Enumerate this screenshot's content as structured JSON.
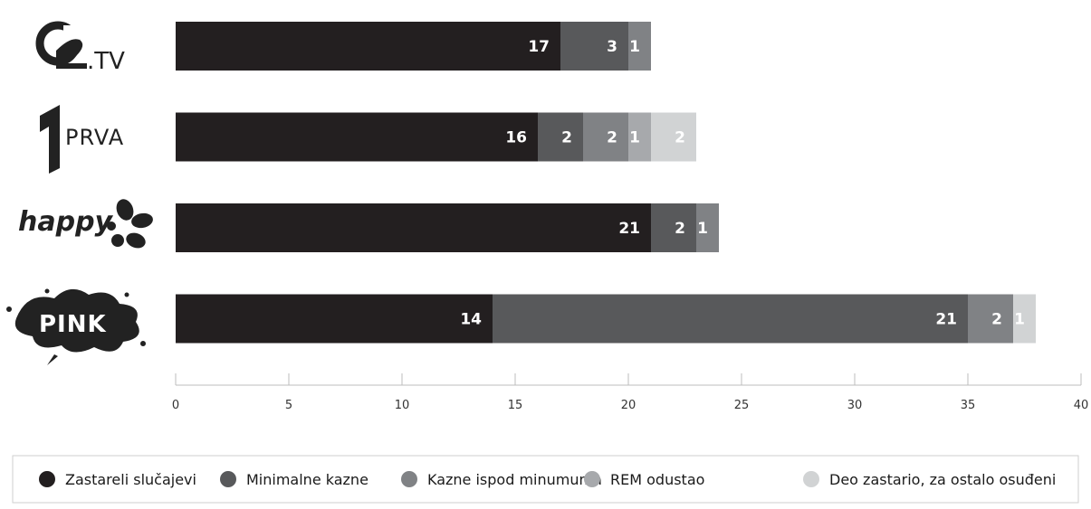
{
  "chart_data": {
    "type": "bar",
    "orientation": "horizontal",
    "stacked": true,
    "categories": [
      "O2.TV",
      "PRVA",
      "happy",
      "PINK"
    ],
    "category_logos": [
      "o2tv-logo",
      "prva-logo",
      "happy-logo",
      "pink-logo"
    ],
    "series": [
      {
        "name": "Zastareli slučajevi",
        "color": "#231f20",
        "values": [
          17,
          16,
          21,
          14
        ]
      },
      {
        "name": "Minimalne kazne",
        "color": "#58595b",
        "values": [
          3,
          2,
          2,
          21
        ]
      },
      {
        "name": "Kazne ispod minumuma",
        "color": "#808285",
        "values": [
          1,
          2,
          1,
          2
        ]
      },
      {
        "name": "REM odustao",
        "color": "#a7a9ac",
        "values": [
          0,
          1,
          0,
          0
        ]
      },
      {
        "name": "Deo zastario, za ostalo osuđeni",
        "color": "#d1d3d4",
        "values": [
          0,
          2,
          0,
          1
        ]
      }
    ],
    "xlim": [
      0,
      40
    ],
    "xticks": [
      0,
      5,
      10,
      15,
      20,
      25,
      30,
      35,
      40
    ],
    "title": "",
    "xlabel": "",
    "ylabel": "",
    "grid": false,
    "legend_position": "bottom"
  }
}
